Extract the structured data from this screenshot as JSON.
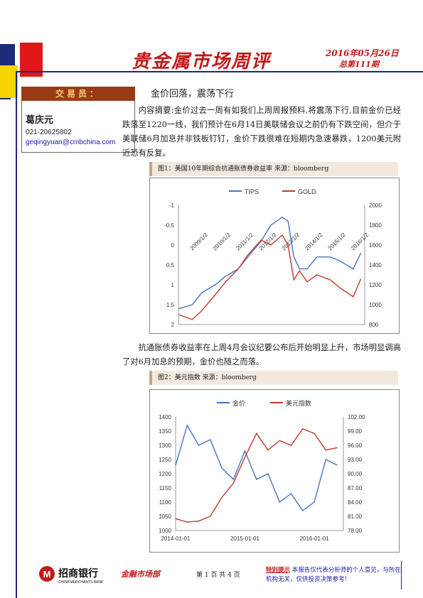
{
  "header": {
    "title": "贵金属市场周评",
    "date": "2016年05月26日",
    "issue": "总第111期"
  },
  "trader": {
    "heading": "交易员：",
    "name": "葛庆元",
    "phone": "021-20625802",
    "email": "geqingyuan@cmbchina.com"
  },
  "article": {
    "headline": "金价回落，震荡下行",
    "paragraph1": "内容摘要:金价过去一周有如我们上周周报预料,将震荡下行,目前金价已经跌落至1220一线，我们预计在6月14日美联储会议之前仍有下跌空间，但介于美联储6月加息并非铁板钉钉，金价下跌很难在短期内急速暴跌，1200美元附近恐有反复。",
    "paragraph2": "抗通胀债券收益率在上周4月会议纪要公布后开始明显上升，市场明显调高了对6月加息的预期，金价也随之而落。"
  },
  "figures": {
    "fig1_caption": "图1：美国10年期综合抗通胀债券收益率   来源：bloomberg",
    "fig2_caption": "图2：美元指数   来源：bloomberg"
  },
  "chart_data": [
    {
      "type": "line",
      "title": "",
      "series": [
        {
          "name": "TIPS",
          "color": "#4472c4",
          "axis": "left-inverted",
          "x": [
            "2008-06",
            "2009-01",
            "2009-06",
            "2010-01",
            "2010-06",
            "2011-01",
            "2011-06",
            "2012-01",
            "2012-06",
            "2012-12",
            "2013-03",
            "2013-06",
            "2013-09",
            "2014-01",
            "2014-06",
            "2015-01",
            "2015-06",
            "2016-01",
            "2016-05"
          ],
          "values": [
            1.6,
            1.5,
            1.2,
            1.0,
            0.8,
            0.6,
            0.3,
            -0.1,
            -0.5,
            -0.7,
            -0.6,
            0.3,
            0.6,
            0.6,
            0.3,
            0.3,
            0.4,
            0.6,
            0.2
          ]
        },
        {
          "name": "GOLD",
          "color": "#c0392b",
          "axis": "right",
          "x": [
            "2008-06",
            "2009-01",
            "2009-06",
            "2010-01",
            "2010-06",
            "2011-01",
            "2011-06",
            "2012-01",
            "2012-06",
            "2012-12",
            "2013-03",
            "2013-06",
            "2013-09",
            "2014-01",
            "2014-06",
            "2015-01",
            "2015-06",
            "2016-01",
            "2016-05"
          ],
          "values": [
            900,
            850,
            940,
            1100,
            1220,
            1360,
            1500,
            1650,
            1600,
            1700,
            1600,
            1250,
            1340,
            1230,
            1300,
            1250,
            1170,
            1080,
            1260
          ]
        }
      ],
      "left_axis": {
        "ticks": [
          "-1",
          "-0.5",
          "0",
          "0.5",
          "1",
          "1.5",
          "2"
        ],
        "range": [
          -1,
          2
        ],
        "inverted": true
      },
      "right_axis": {
        "ticks": [
          "2000",
          "1800",
          "1600",
          "1400",
          "1200",
          "1000",
          "800"
        ],
        "range": [
          800,
          2000
        ]
      },
      "x_ticks": [
        "2009/1/2",
        "2010/1/2",
        "2011/1/2",
        "2012/1/2",
        "2013/1/2",
        "2014/1/2",
        "2015/1/2",
        "2016/1/2"
      ],
      "legend": "top"
    },
    {
      "type": "line",
      "title": "",
      "series": [
        {
          "name": "金价",
          "color": "#4472c4",
          "axis": "left",
          "x": [
            "2014-01",
            "2014-03",
            "2014-05",
            "2014-07",
            "2014-09",
            "2014-11",
            "2015-01",
            "2015-03",
            "2015-05",
            "2015-07",
            "2015-09",
            "2015-11",
            "2016-01",
            "2016-03",
            "2016-05"
          ],
          "values": [
            1230,
            1370,
            1300,
            1320,
            1220,
            1180,
            1280,
            1180,
            1200,
            1100,
            1130,
            1070,
            1100,
            1250,
            1230
          ]
        },
        {
          "name": "美元指数",
          "color": "#c0392b",
          "axis": "right",
          "x": [
            "2014-01",
            "2014-03",
            "2014-05",
            "2014-07",
            "2014-09",
            "2014-11",
            "2015-01",
            "2015-03",
            "2015-05",
            "2015-07",
            "2015-09",
            "2015-11",
            "2016-01",
            "2016-03",
            "2016-05"
          ],
          "values": [
            80.5,
            79.8,
            80.0,
            81.0,
            85.0,
            88.0,
            93.5,
            98.5,
            95.0,
            97.0,
            96.0,
            99.5,
            98.5,
            95.0,
            95.5
          ]
        }
      ],
      "left_axis": {
        "ticks": [
          "1400",
          "1350",
          "1300",
          "1250",
          "1200",
          "1150",
          "1100",
          "1050",
          "1000"
        ],
        "range": [
          1000,
          1400
        ]
      },
      "right_axis": {
        "ticks": [
          "102.00",
          "99.00",
          "96.00",
          "93.00",
          "90.00",
          "87.00",
          "84.00",
          "81.00",
          "78.00"
        ],
        "range": [
          78,
          102
        ]
      },
      "x_ticks": [
        "2014-01-01",
        "2015-01-01",
        "2016-01-01"
      ],
      "legend": "top"
    }
  ],
  "footer": {
    "bank_name": "招商银行",
    "bank_en": "CHINA MERCHANTS BANK",
    "dept": "金融市场部",
    "page": "第 1 页 共 4 页",
    "note_label": "特别提示",
    "note_text": "本报告仅代表分析师的个人意见，与所在机构无关，仅供投资决策参考！"
  }
}
